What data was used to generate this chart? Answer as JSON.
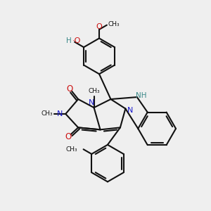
{
  "bg_color": "#efefef",
  "bc": "#111111",
  "nc": "#1a1acc",
  "oc": "#cc1111",
  "hc": "#3a8888",
  "lw": 1.5,
  "dpi": 100,
  "fw": 3.0,
  "fh": 3.0,
  "xlim": [
    0,
    10
  ],
  "ylim": [
    0,
    10
  ]
}
